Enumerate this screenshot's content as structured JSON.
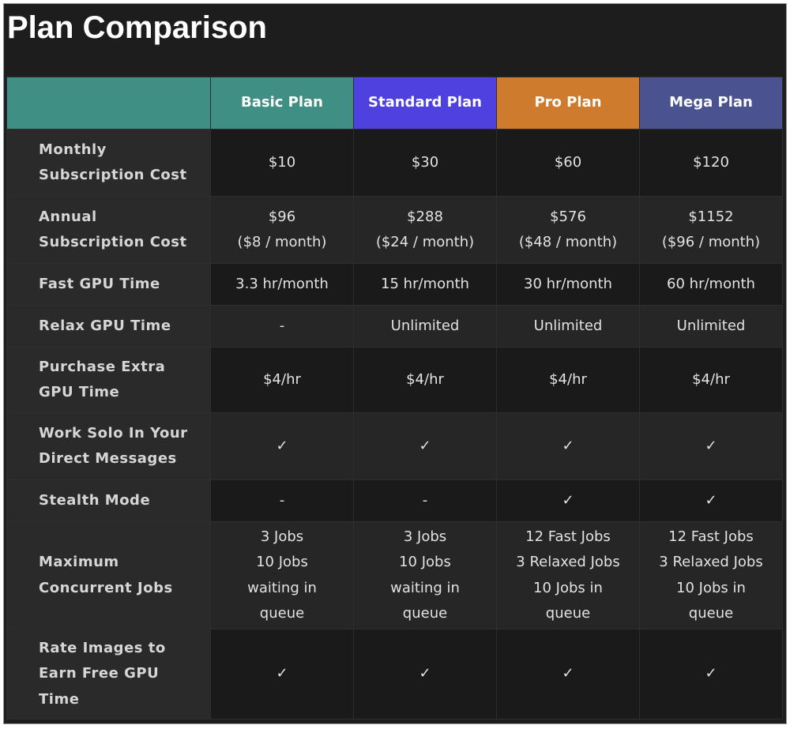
{
  "title": "Plan Comparison",
  "table": {
    "headers": [
      "Basic Plan",
      "Standard Plan",
      "Pro Plan",
      "Mega Plan"
    ],
    "header_colors": [
      "#3f8f85",
      "#4f41e0",
      "#cf7b2e",
      "#4a5290"
    ],
    "rows": [
      {
        "label": [
          "Monthly",
          "Subscription Cost"
        ],
        "cells": [
          [
            "$10"
          ],
          [
            "$30"
          ],
          [
            "$60"
          ],
          [
            "$120"
          ]
        ]
      },
      {
        "label": [
          "Annual",
          "Subscription Cost"
        ],
        "cells": [
          [
            "$96",
            "($8 / month)"
          ],
          [
            "$288",
            "($24 / month)"
          ],
          [
            "$576",
            "($48 / month)"
          ],
          [
            "$1152",
            "($96 / month)"
          ]
        ]
      },
      {
        "label": [
          "Fast GPU Time"
        ],
        "cells": [
          [
            "3.3 hr/month"
          ],
          [
            "15 hr/month"
          ],
          [
            "30 hr/month"
          ],
          [
            "60 hr/month"
          ]
        ]
      },
      {
        "label": [
          "Relax GPU Time"
        ],
        "cells": [
          [
            "-"
          ],
          [
            "Unlimited"
          ],
          [
            "Unlimited"
          ],
          [
            "Unlimited"
          ]
        ]
      },
      {
        "label": [
          "Purchase Extra",
          "GPU Time"
        ],
        "cells": [
          [
            "$4/hr"
          ],
          [
            "$4/hr"
          ],
          [
            "$4/hr"
          ],
          [
            "$4/hr"
          ]
        ]
      },
      {
        "label": [
          "Work Solo In Your",
          "Direct Messages"
        ],
        "cells": [
          [
            "✓"
          ],
          [
            "✓"
          ],
          [
            "✓"
          ],
          [
            "✓"
          ]
        ]
      },
      {
        "label": [
          "Stealth Mode"
        ],
        "cells": [
          [
            "-"
          ],
          [
            "-"
          ],
          [
            "✓"
          ],
          [
            "✓"
          ]
        ]
      },
      {
        "label": [
          "Maximum",
          "Concurrent Jobs"
        ],
        "cells": [
          [
            "3 Jobs",
            "10 Jobs",
            "waiting in",
            "queue"
          ],
          [
            "3 Jobs",
            "10 Jobs",
            "waiting in",
            "queue"
          ],
          [
            "12 Fast Jobs",
            "3 Relaxed Jobs",
            "10 Jobs in",
            "queue"
          ],
          [
            "12 Fast Jobs",
            "3 Relaxed Jobs",
            "10 Jobs in",
            "queue"
          ]
        ]
      },
      {
        "label": [
          "Rate Images to",
          "Earn Free GPU",
          "Time"
        ],
        "cells": [
          [
            "✓"
          ],
          [
            "✓"
          ],
          [
            "✓"
          ],
          [
            "✓"
          ]
        ]
      }
    ]
  }
}
